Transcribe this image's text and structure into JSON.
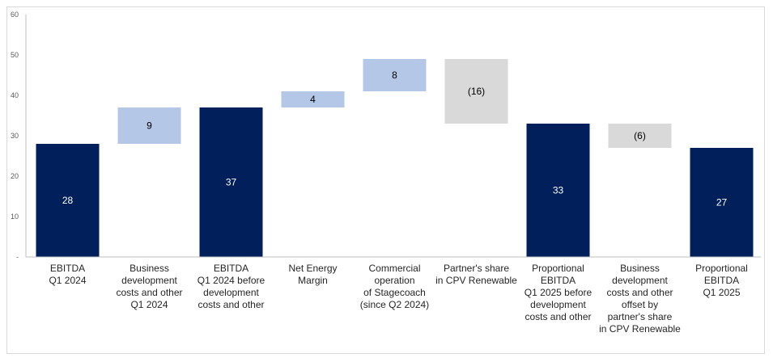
{
  "chart_data": {
    "type": "bar",
    "subtype": "waterfall",
    "title": "",
    "xlabel": "",
    "ylabel": "",
    "ylim": [
      0,
      60
    ],
    "yticks": [
      "-",
      "10",
      "20",
      "30",
      "40",
      "50",
      "60"
    ],
    "grid": false,
    "legend": "none",
    "categories": [
      [
        "EBITDA",
        "Q1 2024"
      ],
      [
        "Business",
        "development",
        "costs and other",
        "Q1 2024"
      ],
      [
        "EBITDA",
        "Q1 2024 before",
        "development",
        "costs and other"
      ],
      [
        "Net Energy",
        "Margin"
      ],
      [
        "Commercial",
        "operation",
        "of Stagecoach",
        "(since Q2 2024)"
      ],
      [
        "Partner's share",
        "in CPV Renewable"
      ],
      [
        "Proportional",
        "EBITDA",
        "Q1 2025 before",
        "development",
        "costs and other"
      ],
      [
        "Business",
        "development",
        "costs and other",
        "offset  by",
        "partner's share",
        "in CPV Renewable"
      ],
      [
        "Proportional",
        "EBITDA",
        "Q1 2025"
      ]
    ],
    "bars": [
      {
        "kind": "total",
        "start": 0,
        "end": 28,
        "label": "28"
      },
      {
        "kind": "increase",
        "start": 28,
        "end": 37,
        "label": "9"
      },
      {
        "kind": "total",
        "start": 0,
        "end": 37,
        "label": "37"
      },
      {
        "kind": "increase",
        "start": 37,
        "end": 41,
        "label": "4"
      },
      {
        "kind": "increase",
        "start": 41,
        "end": 49,
        "label": "8"
      },
      {
        "kind": "decrease",
        "start": 49,
        "end": 33,
        "label": "(16)"
      },
      {
        "kind": "total",
        "start": 0,
        "end": 33,
        "label": "33"
      },
      {
        "kind": "decrease",
        "start": 33,
        "end": 27,
        "label": "(6)"
      },
      {
        "kind": "total",
        "start": 0,
        "end": 27,
        "label": "27"
      }
    ],
    "colors": {
      "total": "#001f5b",
      "increase": "#b4c7e7",
      "decrease": "#d9d9d9",
      "total_label": "#ffffff",
      "change_label": "#000000",
      "axis": "#bfbfbf"
    }
  }
}
